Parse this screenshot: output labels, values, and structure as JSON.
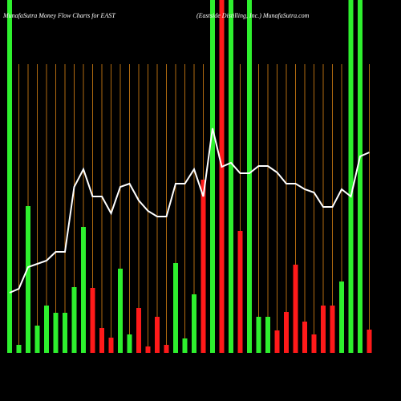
{
  "chart_data": {
    "type": "bar-line",
    "title": "MunafaSutra  Money Flow  Charts for EAST",
    "subtitle": "(Eastside Distilling, Inc.) MunafaSutra.com",
    "ylim": [
      0,
      440
    ],
    "grid": true,
    "bar_values": [
      440,
      10,
      183,
      34,
      59,
      50,
      50,
      82,
      157,
      81,
      31,
      19,
      105,
      23,
      56,
      8,
      45,
      10,
      112,
      18,
      73,
      216,
      440,
      440,
      440,
      152,
      440,
      45,
      45,
      28,
      51,
      110,
      39,
      23,
      59,
      59,
      89,
      440,
      440,
      29
    ],
    "bar_colors": [
      "#2ef02e",
      "#2ef02e",
      "#2ef02e",
      "#2ef02e",
      "#2ef02e",
      "#2ef02e",
      "#2ef02e",
      "#2ef02e",
      "#2ef02e",
      "#ff1a1a",
      "#ff1a1a",
      "#ff1a1a",
      "#2ef02e",
      "#2ef02e",
      "#ff1a1a",
      "#ff1a1a",
      "#ff1a1a",
      "#ff1a1a",
      "#2ef02e",
      "#2ef02e",
      "#2ef02e",
      "#ff1a1a",
      "#2ef02e",
      "#ff1a1a",
      "#2ef02e",
      "#ff1a1a",
      "#2ef02e",
      "#2ef02e",
      "#2ef02e",
      "#ff1a1a",
      "#ff1a1a",
      "#ff1a1a",
      "#ff1a1a",
      "#ff1a1a",
      "#ff1a1a",
      "#ff1a1a",
      "#2ef02e",
      "#2ef02e",
      "#2ef02e",
      "#ff1a1a"
    ],
    "line_values": [
      75,
      80,
      107,
      111,
      115,
      126,
      126,
      207,
      229,
      195,
      195,
      174,
      207,
      211,
      190,
      177,
      170,
      170,
      211,
      211,
      229,
      195,
      280,
      232,
      237,
      224,
      224,
      233,
      233,
      225,
      211,
      211,
      204,
      200,
      182,
      182,
      204,
      195,
      245,
      250
    ],
    "line_color": "#ffffff",
    "grid_color": "#b06a10"
  }
}
